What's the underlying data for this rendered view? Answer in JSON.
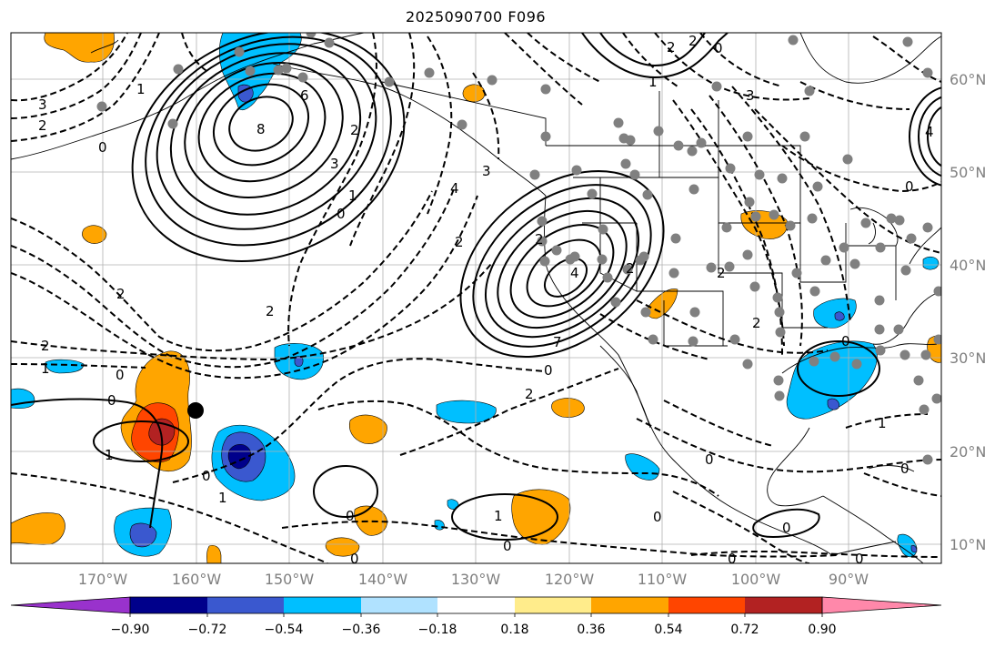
{
  "title": "2025090700 F096",
  "longitude_labels": [
    "170°W",
    "160°W",
    "150°W",
    "140°W",
    "130°W",
    "120°W",
    "110°W",
    "100°W",
    "90°W"
  ],
  "latitude_labels": [
    "60°N",
    "50°N",
    "40°N",
    "30°N",
    "20°N",
    "10°N"
  ],
  "colorbar": {
    "tick_labels": [
      "−0.90",
      "−0.72",
      "−0.54",
      "−0.36",
      "−0.18",
      "0.18",
      "0.36",
      "0.54",
      "0.72",
      "0.90"
    ],
    "colors": [
      "#9932cc",
      "#00008b",
      "#3a58cf",
      "#00bfff",
      "#b0e2ff",
      "#ffffff",
      "#ffec8b",
      "#ffa500",
      "#ff4500",
      "#b22222",
      "#ff88aa"
    ]
  },
  "contour_labels": {
    "c3": "3",
    "c2": "2",
    "c1": "1",
    "c0": "0",
    "c6": "6",
    "c8": "8",
    "c4": "4",
    "c7": "7"
  }
}
